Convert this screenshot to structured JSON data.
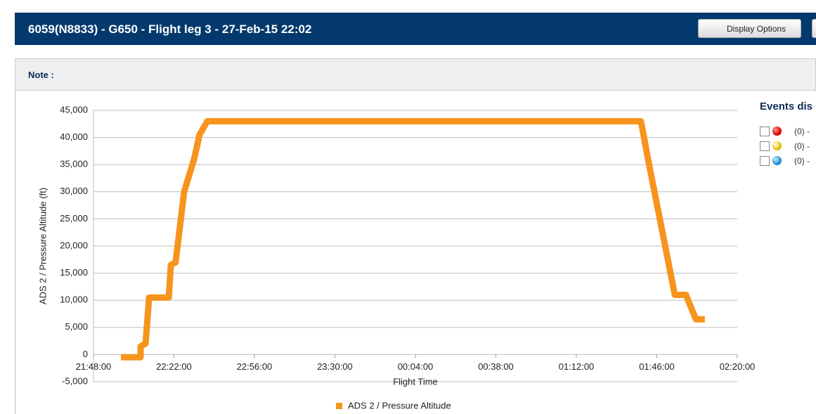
{
  "header": {
    "title": "6059(N8833) - G650 - Flight leg 3 - 27-Feb-15 22:02",
    "button": "Display Options"
  },
  "note": {
    "label": "Note :"
  },
  "events": {
    "title": "Events dis",
    "items": [
      "(0) -",
      "(0) -",
      "(0) -"
    ]
  },
  "chart_data": {
    "type": "line",
    "x_label": "Flight Time",
    "y_label": "ADS 2 / Pressure Altitude (ft)",
    "x": [
      1319.6,
      1327.9,
      1327.9,
      1330.0,
      1331.5,
      1339.8,
      1340.7,
      1342.7,
      1346.3,
      1350.5,
      1352.8,
      1356.1,
      1539.3,
      1542.3,
      1553.6,
      1558.3,
      1562.5,
      1566.3
    ],
    "series": [
      {
        "name": "ADS 2 / Pressure Altitude",
        "color": "#f7941d",
        "values": [
          -500,
          -500,
          1500,
          2000,
          10500,
          10500,
          16500,
          17000,
          30000,
          36000,
          40500,
          43000,
          43000,
          36000,
          11000,
          11000,
          6500,
          6500
        ]
      }
    ],
    "xlim": [
      1308,
      1580
    ],
    "xticks": [
      {
        "value": 1308,
        "label": "21:48:00"
      },
      {
        "value": 1342,
        "label": "22:22:00"
      },
      {
        "value": 1376,
        "label": "22:56:00"
      },
      {
        "value": 1410,
        "label": "23:30:00"
      },
      {
        "value": 1444,
        "label": "00:04:00"
      },
      {
        "value": 1478,
        "label": "00:38:00"
      },
      {
        "value": 1512,
        "label": "01:12:00"
      },
      {
        "value": 1546,
        "label": "01:46:00"
      },
      {
        "value": 1580,
        "label": "02:20:00"
      }
    ],
    "ylim": [
      -5000,
      45000
    ],
    "yticks": [
      {
        "value": -5000,
        "label": "-5,000"
      },
      0,
      {
        "value": 5000,
        "label": "5,000"
      },
      {
        "value": 10000,
        "label": "10,000"
      },
      {
        "value": 15000,
        "label": "15,000"
      },
      {
        "value": 20000,
        "label": "20,000"
      },
      {
        "value": 25000,
        "label": "25,000"
      },
      {
        "value": 30000,
        "label": "30,000"
      },
      {
        "value": 35000,
        "label": "35,000"
      },
      {
        "value": 40000,
        "label": "40,000"
      },
      {
        "value": 45000,
        "label": "45,000"
      }
    ],
    "grid": true,
    "legend": "bottom"
  }
}
